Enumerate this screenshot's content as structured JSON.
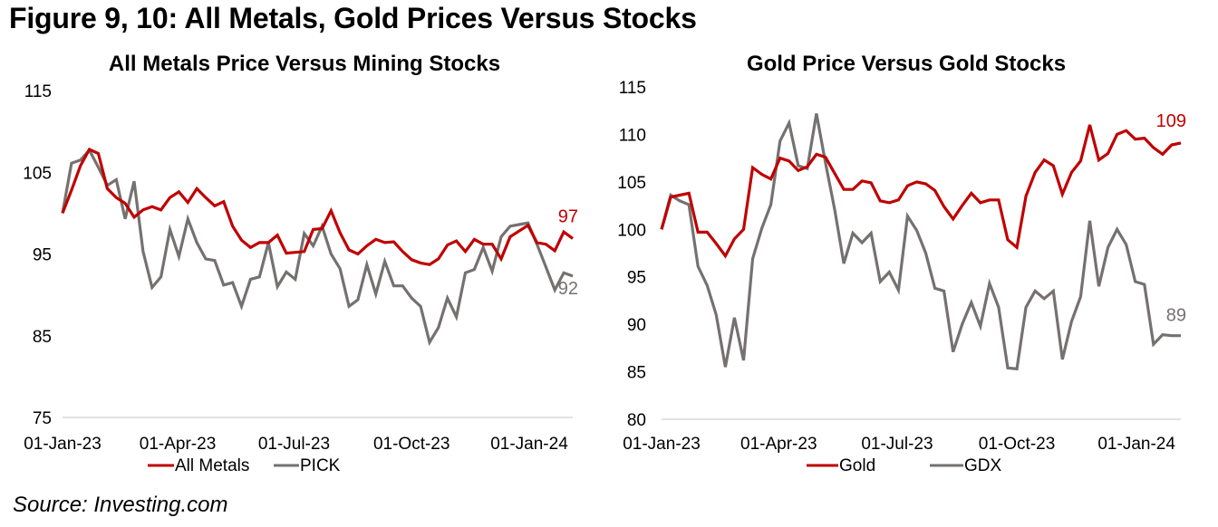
{
  "figure_title": "Figure 9, 10: All Metals, Gold Prices Versus Stocks",
  "source": "Source: Investing.com",
  "colors": {
    "red": "#c00000",
    "gray": "#767171",
    "axis": "#d9d9d9"
  },
  "chart_data": [
    {
      "type": "line",
      "title": "All Metals Price Versus Mining Stocks",
      "xlabel": "",
      "ylabel": "",
      "ylim": [
        75,
        115
      ],
      "yticks": [
        "115",
        "105",
        "95",
        "85",
        "75"
      ],
      "ytick_values": [
        115,
        105,
        95,
        85,
        75
      ],
      "xticks": [
        "01-Jan-23",
        "01-Apr-23",
        "01-Jul-23",
        "01-Oct-23",
        "01-Jan-24"
      ],
      "xtick_weeks": [
        0,
        12.86,
        25.86,
        39,
        52.14
      ],
      "x_unit": "weeks since 01-Jan-23",
      "grid": false,
      "legend": "bottom",
      "series": [
        {
          "name": "All Metals",
          "color": "#c00000",
          "end_label": "97",
          "values": [
            100,
            102.8,
            105.8,
            107.8,
            107.3,
            103,
            101.9,
            101.2,
            99.5,
            100.4,
            100.8,
            100.4,
            101.9,
            102.6,
            101.3,
            103,
            101.9,
            100.9,
            101.4,
            98.4,
            96.7,
            95.8,
            96.4,
            96.4,
            97.3,
            95.1,
            95.2,
            95.3,
            98,
            98.1,
            100.3,
            97.6,
            95.5,
            95,
            96,
            96.8,
            96.4,
            96.5,
            95.3,
            94.3,
            93.9,
            93.7,
            94.4,
            96.1,
            96.6,
            95.3,
            96.8,
            96.2,
            96.2,
            94.4,
            97.1,
            97.8,
            98.5,
            96.4,
            96.2,
            95.4,
            97.7,
            96.9
          ]
        },
        {
          "name": "PICK",
          "color": "#767171",
          "end_label": "92",
          "values": [
            100,
            106.1,
            106.5,
            107.7,
            105.6,
            103.4,
            104.1,
            99.3,
            103.9,
            95.3,
            90.9,
            92.2,
            98,
            94.7,
            99.3,
            96.4,
            94.4,
            94.2,
            91.2,
            91.5,
            88.6,
            91.9,
            92.2,
            96.4,
            91,
            92.8,
            91.9,
            97.5,
            96,
            98.4,
            95,
            93.2,
            88.6,
            89.4,
            93.7,
            90.1,
            94.1,
            91.1,
            91.1,
            89.6,
            88.6,
            84.2,
            86,
            89.6,
            87.3,
            92.7,
            93.1,
            95.8,
            92.9,
            97.1,
            98.4,
            98.6,
            98.8,
            96.2,
            93.4,
            90.6,
            92.7,
            92.3
          ]
        }
      ]
    },
    {
      "type": "line",
      "title": "Gold Price Versus Gold Stocks",
      "xlabel": "",
      "ylabel": "",
      "ylim": [
        80,
        115
      ],
      "yticks": [
        "115",
        "110",
        "105",
        "100",
        "95",
        "90",
        "85",
        "80"
      ],
      "ytick_values": [
        115,
        110,
        105,
        100,
        95,
        90,
        85,
        80
      ],
      "xticks": [
        "01-Jan-23",
        "01-Apr-23",
        "01-Jul-23",
        "01-Oct-23",
        "01-Jan-24"
      ],
      "xtick_weeks": [
        0,
        12.86,
        25.86,
        39,
        52.14
      ],
      "x_unit": "weeks since 01-Jan-23",
      "grid": false,
      "legend": "bottom",
      "series": [
        {
          "name": "Gold",
          "color": "#c00000",
          "end_label": "109",
          "values": [
            100,
            103.4,
            103.6,
            103.8,
            99.7,
            99.7,
            98.5,
            97.2,
            99,
            100,
            106.5,
            105.8,
            105.3,
            107.5,
            107.2,
            106.2,
            106.6,
            107.9,
            107.6,
            105.9,
            104.2,
            104.2,
            105.1,
            104.9,
            103,
            102.8,
            103.1,
            104.6,
            105,
            104.8,
            104.1,
            102.4,
            101.1,
            102.5,
            103.8,
            102.8,
            103.1,
            103.1,
            98.9,
            98.1,
            103.5,
            106,
            107.3,
            106.7,
            103.7,
            106,
            107.2,
            111,
            107.3,
            108,
            110,
            110.4,
            109.5,
            109.6,
            108.6,
            107.9,
            108.9,
            109.1
          ]
        },
        {
          "name": "GDX",
          "color": "#767171",
          "end_label": "89",
          "values": [
            100,
            103.6,
            103,
            102.6,
            96.1,
            94.1,
            91,
            85.5,
            90.7,
            86.2,
            96.9,
            100.1,
            102.6,
            109.3,
            111.2,
            106.7,
            106.4,
            112.2,
            107,
            102.1,
            96.4,
            99.6,
            98.6,
            99.6,
            94.5,
            95.5,
            93.6,
            101.4,
            99.9,
            97.5,
            93.8,
            93.5,
            87.1,
            90,
            92.3,
            89.8,
            94.3,
            91.8,
            85.4,
            85.3,
            91.8,
            93.5,
            92.7,
            93.5,
            86.3,
            90.3,
            92.9,
            100.9,
            94,
            98.1,
            100,
            98.4,
            94.5,
            94.2,
            87.9,
            88.9,
            88.8,
            88.8
          ]
        }
      ]
    }
  ]
}
